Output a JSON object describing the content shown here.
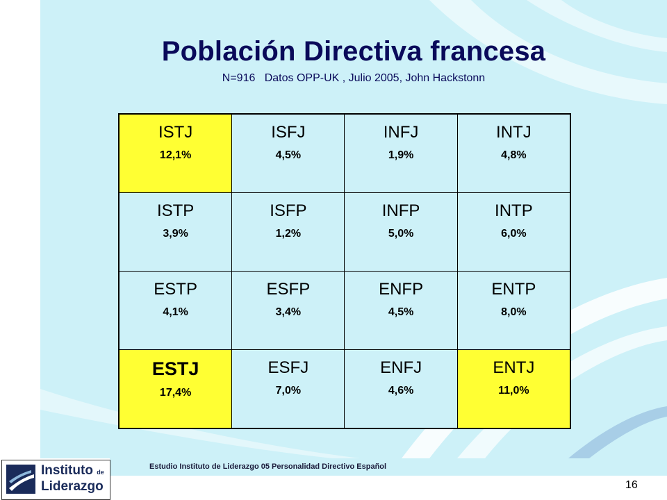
{
  "slide": {
    "title": "Población Directiva francesa",
    "subtitle": "N=916   Datos OPP-UK , Julio 2005, John Hackstonn",
    "footer_text": "Estudio Instituto  de Liderazgo 05 Personalidad Directivo Español",
    "page_number": "16",
    "highlight_color": "#ffff33",
    "background_color": "#cdf1f8"
  },
  "logo": {
    "line1": "Instituto",
    "de": "de",
    "line2": "Liderazgo"
  },
  "grid": [
    [
      {
        "type": "ISTJ",
        "pct": "12,1%",
        "highlight": true
      },
      {
        "type": "ISFJ",
        "pct": "4,5%",
        "highlight": false
      },
      {
        "type": "INFJ",
        "pct": "1,9%",
        "highlight": false
      },
      {
        "type": "INTJ",
        "pct": "4,8%",
        "highlight": false
      }
    ],
    [
      {
        "type": "ISTP",
        "pct": "3,9%",
        "highlight": false
      },
      {
        "type": "ISFP",
        "pct": "1,2%",
        "highlight": false
      },
      {
        "type": "INFP",
        "pct": "5,0%",
        "highlight": false
      },
      {
        "type": "INTP",
        "pct": "6,0%",
        "highlight": false
      }
    ],
    [
      {
        "type": "ESTP",
        "pct": "4,1%",
        "highlight": false
      },
      {
        "type": "ESFP",
        "pct": "3,4%",
        "highlight": false
      },
      {
        "type": "ENFP",
        "pct": "4,5%",
        "highlight": false
      },
      {
        "type": "ENTP",
        "pct": "8,0%",
        "highlight": false
      }
    ],
    [
      {
        "type": "ESTJ",
        "pct": "17,4%",
        "highlight": true,
        "emphasis": true
      },
      {
        "type": "ESFJ",
        "pct": "7,0%",
        "highlight": false
      },
      {
        "type": "ENFJ",
        "pct": "4,6%",
        "highlight": false
      },
      {
        "type": "ENTJ",
        "pct": "11,0%",
        "highlight": true
      }
    ]
  ]
}
